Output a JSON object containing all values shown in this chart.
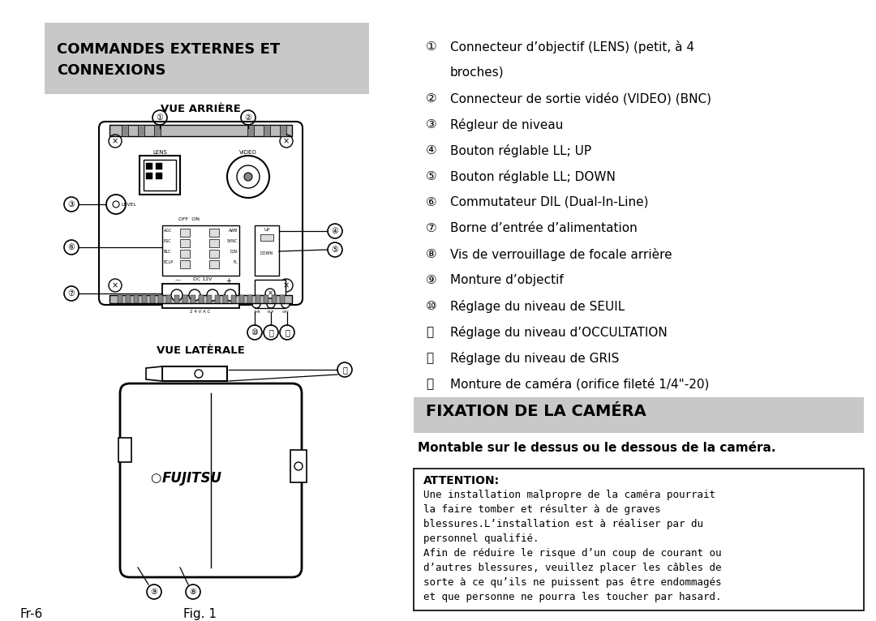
{
  "title_section1_line1": "COMMANDES EXTERNES ET",
  "title_section1_line2": "CONNEXIONS",
  "title_section2": "FIXATION DE LA CAMÉRA",
  "title_bg_color": "#c8c8c8",
  "page_bg": "#ffffff",
  "vue_arriere_label": "VUE ARRIÈRE",
  "vue_laterale_label": "VUE LATÈRALE",
  "fig_label": "Fig. 1",
  "page_num": "Fr-6",
  "fixation_text": "Montable sur le dessus ou le dessous de la caméra.",
  "attention_title": "ATTENTION:",
  "attention_lines": [
    "Une installation malpropre de la caméra pourrait",
    "la faire tomber et résulter à de graves",
    "blessures.L’installation est à réaliser par du",
    "personnel qualifié.",
    "Afin de réduire le risque d’un coup de courant ou",
    "d’autres blessures, veuillez placer les câbles de",
    "sorte à ce qu’ils ne puissent pas être endommagés",
    "et que personne ne pourra les toucher par hasard."
  ],
  "items": [
    [
      "①",
      "Connecteur d’objectif (LENS) (petit, à 4"
    ],
    [
      "",
      "broches)"
    ],
    [
      "②",
      "Connecteur de sortie vidéo (VIDEO) (BNC)"
    ],
    [
      "③",
      "Régleur de niveau"
    ],
    [
      "④",
      "Bouton réglable LL; UP"
    ],
    [
      "⑤",
      "Bouton réglable LL; DOWN"
    ],
    [
      "⑥",
      "Commutateur DIL (Dual-In-Line)"
    ],
    [
      "⑦",
      "Borne d’entrée d’alimentation"
    ],
    [
      "⑧",
      "Vis de verrouillage de focale arrière"
    ],
    [
      "⑨",
      "Monture d’objectif"
    ],
    [
      "⑩",
      "Réglage du niveau de SEUIL"
    ],
    [
      "⑪",
      "Réglage du niveau d’OCCULTATION"
    ],
    [
      "⑫",
      "Réglage du niveau de GRIS"
    ],
    [
      "⑬",
      "Monture de caméra (orifice fileté 1/4\"-20)"
    ]
  ]
}
